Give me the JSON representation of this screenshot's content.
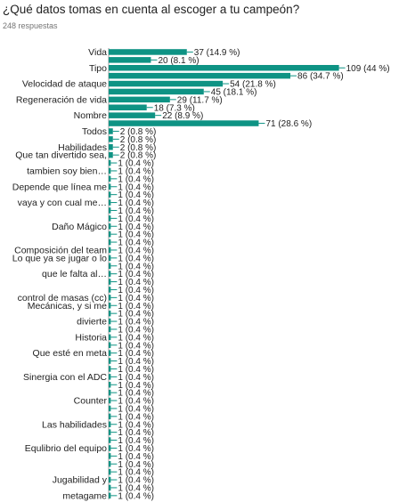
{
  "question": {
    "title": "¿Qué datos tomas en cuenta al escoger a tu campeón?",
    "responses": "248 respuestas"
  },
  "colors": {
    "bar": "#0e9384",
    "axis": "#9e9e9e",
    "text": "#222222"
  },
  "chart_data": {
    "type": "bar",
    "orientation": "horizontal",
    "title": "¿Qué datos tomas en cuenta al escoger a tu campeón?",
    "subtitle": "248 respuestas",
    "xlim": [
      0,
      110
    ],
    "bars": [
      {
        "label": "Vida",
        "value": 37,
        "text": "37 (14.9 %)"
      },
      {
        "label": "",
        "value": 20,
        "text": "20 (8.1 %)"
      },
      {
        "label": "Tipo",
        "value": 109,
        "text": "109 (44 %)"
      },
      {
        "label": "",
        "value": 86,
        "text": "86 (34.7 %)"
      },
      {
        "label": "Velocidad de ataque",
        "value": 54,
        "text": "54 (21.8 %)"
      },
      {
        "label": "",
        "value": 45,
        "text": "45 (18.1 %)"
      },
      {
        "label": "Regeneración de vida",
        "value": 29,
        "text": "29 (11.7 %)"
      },
      {
        "label": "",
        "value": 18,
        "text": "18 (7.3 %)"
      },
      {
        "label": "Nombre",
        "value": 22,
        "text": "22 (8.9 %)"
      },
      {
        "label": "",
        "value": 71,
        "text": "71 (28.6 %)"
      },
      {
        "label": "Todos",
        "value": 2,
        "text": "2 (0.8 %)"
      },
      {
        "label": "",
        "value": 2,
        "text": "2 (0.8 %)"
      },
      {
        "label": "Habilidades",
        "value": 2,
        "text": "2 (0.8 %)"
      },
      {
        "label": "Que tan divertido sea,",
        "value": 2,
        "text": "2 (0.8 %)"
      },
      {
        "label": "",
        "value": 1,
        "text": "1 (0.4 %)"
      },
      {
        "label": "tambien soy bien…",
        "value": 1,
        "text": "1 (0.4 %)"
      },
      {
        "label": "",
        "value": 1,
        "text": "1 (0.4 %)"
      },
      {
        "label": "Depende que línea me",
        "value": 1,
        "text": "1 (0.4 %)"
      },
      {
        "label": "",
        "value": 1,
        "text": "1 (0.4 %)"
      },
      {
        "label": "vaya y con cual me…",
        "value": 1,
        "text": "1 (0.4 %)"
      },
      {
        "label": "",
        "value": 1,
        "text": "1 (0.4 %)"
      },
      {
        "label": "",
        "value": 1,
        "text": "1 (0.4 %)"
      },
      {
        "label": "Daño Mágico",
        "value": 1,
        "text": "1 (0.4 %)"
      },
      {
        "label": "",
        "value": 1,
        "text": "1 (0.4 %)"
      },
      {
        "label": "",
        "value": 1,
        "text": "1 (0.4 %)"
      },
      {
        "label": "Composición del team",
        "value": 1,
        "text": "1 (0.4 %)"
      },
      {
        "label": "Lo que ya se jugar o lo",
        "value": 1,
        "text": "1 (0.4 %)"
      },
      {
        "label": "",
        "value": 1,
        "text": "1 (0.4 %)"
      },
      {
        "label": "que le falta al…",
        "value": 1,
        "text": "1 (0.4 %)"
      },
      {
        "label": "",
        "value": 1,
        "text": "1 (0.4 %)"
      },
      {
        "label": "",
        "value": 1,
        "text": "1 (0.4 %)"
      },
      {
        "label": "control de masas (cc)",
        "value": 1,
        "text": "1 (0.4 %)"
      },
      {
        "label": "Mecánicas, y si me",
        "value": 1,
        "text": "1 (0.4 %)"
      },
      {
        "label": "",
        "value": 1,
        "text": "1 (0.4 %)"
      },
      {
        "label": "divierte",
        "value": 1,
        "text": "1 (0.4 %)"
      },
      {
        "label": "",
        "value": 1,
        "text": "1 (0.4 %)"
      },
      {
        "label": "Historia",
        "value": 1,
        "text": "1 (0.4 %)"
      },
      {
        "label": "",
        "value": 1,
        "text": "1 (0.4 %)"
      },
      {
        "label": "Que esté en meta",
        "value": 1,
        "text": "1 (0.4 %)"
      },
      {
        "label": "",
        "value": 1,
        "text": "1 (0.4 %)"
      },
      {
        "label": "",
        "value": 1,
        "text": "1 (0.4 %)"
      },
      {
        "label": "Sinergia con el ADC",
        "value": 1,
        "text": "1 (0.4 %)"
      },
      {
        "label": "",
        "value": 1,
        "text": "1 (0.4 %)"
      },
      {
        "label": "",
        "value": 1,
        "text": "1 (0.4 %)"
      },
      {
        "label": "Counter",
        "value": 1,
        "text": "1 (0.4 %)"
      },
      {
        "label": "",
        "value": 1,
        "text": "1 (0.4 %)"
      },
      {
        "label": "",
        "value": 1,
        "text": "1 (0.4 %)"
      },
      {
        "label": "Las habilidades",
        "value": 1,
        "text": "1 (0.4 %)"
      },
      {
        "label": "",
        "value": 1,
        "text": "1 (0.4 %)"
      },
      {
        "label": "",
        "value": 1,
        "text": "1 (0.4 %)"
      },
      {
        "label": "Equlibrio del equipo",
        "value": 1,
        "text": "1 (0.4 %)"
      },
      {
        "label": "",
        "value": 1,
        "text": "1 (0.4 %)"
      },
      {
        "label": "",
        "value": 1,
        "text": "1 (0.4 %)"
      },
      {
        "label": "",
        "value": 1,
        "text": "1 (0.4 %)"
      },
      {
        "label": "Jugabilidad y",
        "value": 1,
        "text": "1 (0.4 %)"
      },
      {
        "label": "",
        "value": 1,
        "text": "1 (0.4 %)"
      },
      {
        "label": "metagame",
        "value": 1,
        "text": "1 (0.4 %)"
      }
    ]
  }
}
